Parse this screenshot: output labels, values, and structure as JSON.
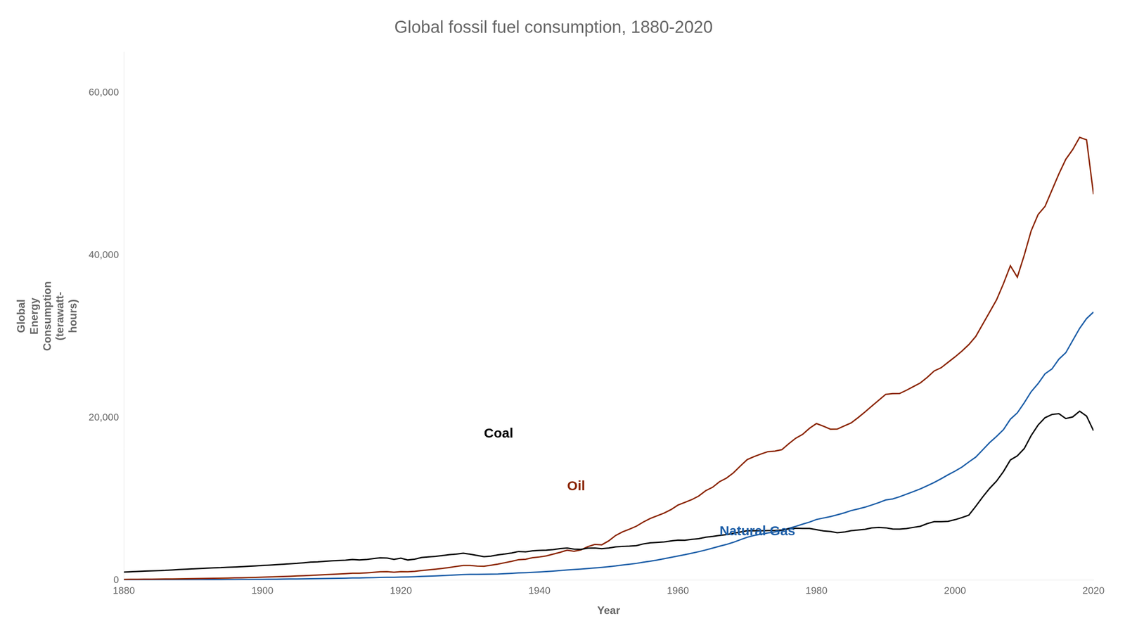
{
  "chart_data": {
    "type": "line",
    "title": "Global fossil fuel consumption, 1880-2020",
    "xlabel": "Year",
    "ylabel": "Global\nEnergy\nConsumption\n(terawatt-\nhours)",
    "x": [
      1880,
      1881,
      1882,
      1883,
      1884,
      1885,
      1886,
      1887,
      1888,
      1889,
      1890,
      1891,
      1892,
      1893,
      1894,
      1895,
      1896,
      1897,
      1898,
      1899,
      1900,
      1901,
      1902,
      1903,
      1904,
      1905,
      1906,
      1907,
      1908,
      1909,
      1910,
      1911,
      1912,
      1913,
      1914,
      1915,
      1916,
      1917,
      1918,
      1919,
      1920,
      1921,
      1922,
      1923,
      1924,
      1925,
      1926,
      1927,
      1928,
      1929,
      1930,
      1931,
      1932,
      1933,
      1934,
      1935,
      1936,
      1937,
      1938,
      1939,
      1940,
      1941,
      1942,
      1943,
      1944,
      1945,
      1946,
      1947,
      1948,
      1949,
      1950,
      1951,
      1952,
      1953,
      1954,
      1955,
      1956,
      1957,
      1958,
      1959,
      1960,
      1961,
      1962,
      1963,
      1964,
      1965,
      1966,
      1967,
      1968,
      1969,
      1970,
      1971,
      1972,
      1973,
      1974,
      1975,
      1976,
      1977,
      1978,
      1979,
      1980,
      1981,
      1982,
      1983,
      1984,
      1985,
      1986,
      1987,
      1988,
      1989,
      1990,
      1991,
      1992,
      1993,
      1994,
      1995,
      1996,
      1997,
      1998,
      1999,
      2000,
      2001,
      2002,
      2003,
      2004,
      2005,
      2006,
      2007,
      2008,
      2009,
      2010,
      2011,
      2012,
      2013,
      2014,
      2015,
      2016,
      2017,
      2018,
      2019,
      2020
    ],
    "series": [
      {
        "name": "Coal",
        "color": "#000000",
        "values": [
          1001,
          1040,
          1085,
          1120,
          1155,
          1185,
          1215,
          1265,
          1315,
          1355,
          1400,
          1445,
          1490,
          1525,
          1548,
          1590,
          1625,
          1665,
          1715,
          1765,
          1820,
          1865,
          1915,
          1975,
          2030,
          2080,
          2150,
          2235,
          2265,
          2325,
          2380,
          2425,
          2465,
          2550,
          2490,
          2545,
          2660,
          2755,
          2730,
          2570,
          2710,
          2490,
          2590,
          2795,
          2870,
          2935,
          3040,
          3145,
          3220,
          3325,
          3200,
          3045,
          2900,
          2970,
          3120,
          3225,
          3350,
          3540,
          3490,
          3620,
          3680,
          3700,
          3775,
          3890,
          3960,
          3820,
          3800,
          3950,
          3970,
          3880,
          3970,
          4100,
          4165,
          4200,
          4255,
          4470,
          4605,
          4655,
          4715,
          4840,
          4940,
          4925,
          5025,
          5110,
          5295,
          5385,
          5510,
          5610,
          5775,
          5935,
          6095,
          6090,
          6080,
          6110,
          6120,
          6185,
          6320,
          6405,
          6375,
          6375,
          6220,
          6065,
          6000,
          5855,
          5925,
          6095,
          6180,
          6260,
          6440,
          6505,
          6450,
          6305,
          6295,
          6355,
          6505,
          6640,
          6970,
          7210,
          7210,
          7245,
          7450,
          7710,
          8010,
          9100,
          10250,
          11300,
          12200,
          13380,
          14800,
          15300,
          16200,
          17800,
          19100,
          20000,
          20400,
          20500,
          19900,
          20100,
          20800,
          20200,
          18400
        ]
      },
      {
        "name": "Oil",
        "color": "#8B2500",
        "values": [
          100,
          108,
          116,
          124,
          132,
          140,
          149,
          160,
          171,
          183,
          196,
          210,
          224,
          239,
          255,
          272,
          290,
          310,
          332,
          355,
          380,
          406,
          433,
          463,
          494,
          527,
          562,
          599,
          637,
          677,
          719,
          763,
          809,
          857,
          857,
          905,
          968,
          1035,
          1055,
          990,
          1058,
          1035,
          1100,
          1188,
          1277,
          1366,
          1456,
          1570,
          1700,
          1813,
          1813,
          1741,
          1719,
          1850,
          1982,
          2158,
          2334,
          2530,
          2578,
          2775,
          2863,
          2996,
          3215,
          3435,
          3697,
          3568,
          3742,
          4140,
          4402,
          4358,
          4841,
          5507,
          5949,
          6278,
          6651,
          7165,
          7601,
          7930,
          8260,
          8690,
          9248,
          9579,
          9921,
          10364,
          11017,
          11441,
          12122,
          12563,
          13212,
          14050,
          14849,
          15218,
          15540,
          15826,
          15892,
          16069,
          16796,
          17475,
          17953,
          18700,
          19283,
          18955,
          18595,
          18598,
          18987,
          19353,
          20003,
          20700,
          21440,
          22160,
          22875,
          22971,
          22979,
          23382,
          23836,
          24285,
          24965,
          25755,
          26150,
          26820,
          27480,
          28200,
          29000,
          30000,
          31500,
          33000,
          34500,
          36500,
          38700,
          37300,
          40000,
          43000,
          45000,
          46000,
          48000,
          50000,
          51800,
          53000,
          54500,
          54200,
          47500
        ]
      },
      {
        "name": "Natural Gas",
        "color": "#1E5FA8",
        "values": [
          30,
          32,
          34,
          36,
          38,
          41,
          44,
          47,
          50,
          54,
          58,
          62,
          66,
          71,
          76,
          81,
          87,
          93,
          100,
          107,
          115,
          123,
          131,
          140,
          150,
          161,
          172,
          184,
          197,
          211,
          226,
          241,
          257,
          275,
          285,
          302,
          323,
          345,
          360,
          368,
          393,
          409,
          433,
          467,
          500,
          532,
          568,
          610,
          651,
          692,
          718,
          727,
          734,
          744,
          762,
          800,
          850,
          902,
          933,
          974,
          1015,
          1067,
          1124,
          1191,
          1262,
          1312,
          1371,
          1437,
          1518,
          1583,
          1663,
          1756,
          1869,
          1966,
          2074,
          2218,
          2341,
          2487,
          2650,
          2815,
          2980,
          3145,
          3330,
          3514,
          3724,
          3951,
          4183,
          4404,
          4668,
          4980,
          5289,
          5513,
          5661,
          5820,
          5944,
          6121,
          6390,
          6630,
          6898,
          7159,
          7474,
          7655,
          7832,
          8047,
          8288,
          8570,
          8773,
          8988,
          9266,
          9557,
          9877,
          10001,
          10270,
          10593,
          10910,
          11248,
          11628,
          12034,
          12490,
          12972,
          13426,
          13923,
          14554,
          15155,
          16038,
          16937,
          17700,
          18530,
          19820,
          20600,
          21840,
          23200,
          24200,
          25400,
          26000,
          27200,
          28000,
          29500,
          31000,
          32200,
          33000
        ]
      }
    ],
    "annotations": [
      {
        "text": "Coal",
        "x": 1932,
        "y": 18000,
        "color": "#000000"
      },
      {
        "text": "Oil",
        "x": 1944,
        "y": 11500,
        "color": "#8B2500"
      },
      {
        "text": "Natural Gas",
        "x": 1966,
        "y": 6000,
        "color": "#1E5FA8"
      }
    ],
    "xlim": [
      1880,
      2020
    ],
    "xticks": [
      1880,
      1900,
      1920,
      1940,
      1960,
      1980,
      2000,
      2020
    ],
    "ylim": [
      0,
      65000
    ],
    "yticks": [
      0,
      {
        "value": 20000,
        "label": "20,000"
      },
      {
        "value": 40000,
        "label": "40,000"
      },
      {
        "value": 60000,
        "label": "60,000"
      }
    ],
    "grid": false
  }
}
